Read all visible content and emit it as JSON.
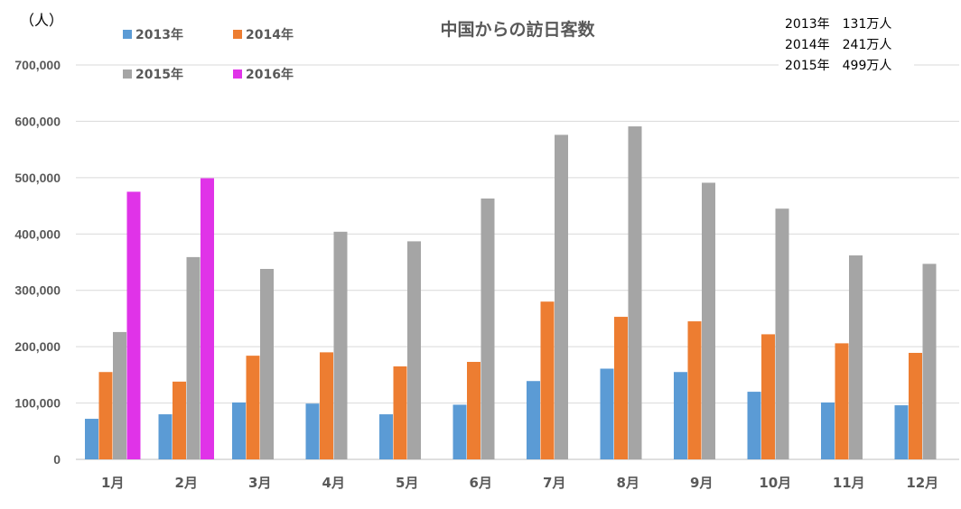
{
  "chart_data": {
    "type": "bar",
    "title": "中国からの訪日客数",
    "ylabel": "（人）",
    "xlabel": "",
    "ylim": [
      0,
      700000
    ],
    "ytick_step": 100000,
    "grid": true,
    "legend_position": "top-left",
    "categories": [
      "1月",
      "2月",
      "3月",
      "4月",
      "5月",
      "6月",
      "7月",
      "8月",
      "9月",
      "10月",
      "11月",
      "12月"
    ],
    "series": [
      {
        "name": "2013年",
        "color": "#5B9BD5",
        "values": [
          72000,
          80000,
          101000,
          99000,
          80000,
          97000,
          139000,
          161000,
          155000,
          120000,
          101000,
          96000
        ]
      },
      {
        "name": "2014年",
        "color": "#ED7D31",
        "values": [
          155000,
          138000,
          184000,
          190000,
          165000,
          173000,
          280000,
          253000,
          245000,
          222000,
          206000,
          189000
        ]
      },
      {
        "name": "2015年",
        "color": "#A5A5A5",
        "values": [
          226000,
          359000,
          338000,
          404000,
          387000,
          463000,
          576000,
          591000,
          491000,
          445000,
          362000,
          347000
        ]
      },
      {
        "name": "2016年",
        "color": "#E033E8",
        "values": [
          475000,
          499000,
          null,
          null,
          null,
          null,
          null,
          null,
          null,
          null,
          null,
          null
        ]
      }
    ],
    "annotations": [
      "2013年　131万人",
      "2014年　241万人",
      "2015年　499万人"
    ]
  }
}
